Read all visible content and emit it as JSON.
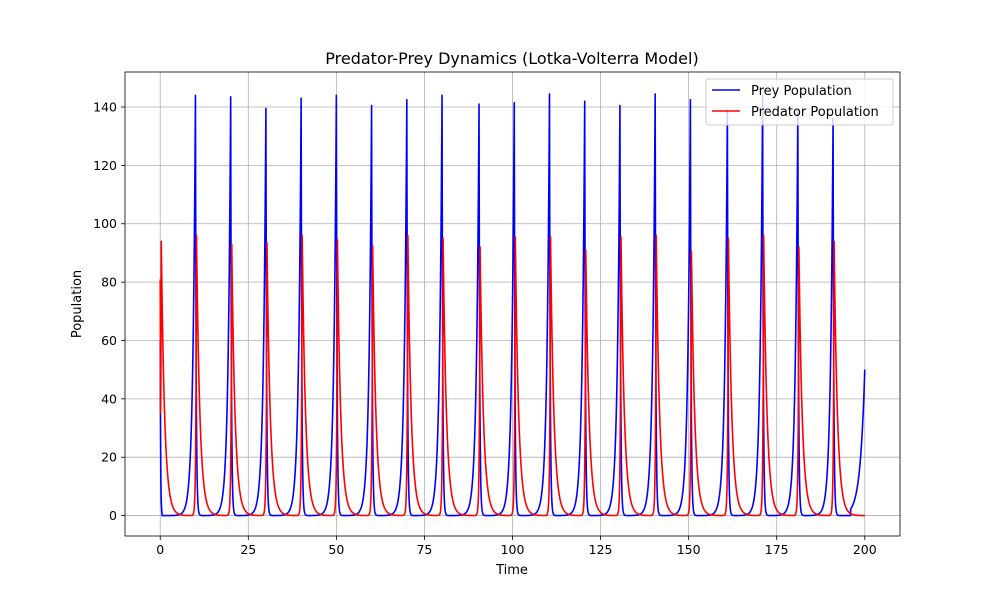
{
  "chart_data": {
    "type": "line",
    "title": "Predator-Prey Dynamics (Lotka-Volterra Model)",
    "xlabel": "Time",
    "ylabel": "Population",
    "xlim": [
      -10,
      210
    ],
    "ylim": [
      -7,
      152
    ],
    "xticks": [
      0,
      25,
      50,
      75,
      100,
      125,
      150,
      175,
      200
    ],
    "yticks": [
      0,
      20,
      40,
      60,
      80,
      100,
      120,
      140
    ],
    "grid": true,
    "legend": "top-right",
    "series": [
      {
        "name": "Prey Population",
        "color": "#0000ff",
        "start": 60,
        "end": 50,
        "peak_times": [
          10,
          20,
          30,
          40,
          50,
          60,
          70,
          80,
          90.5,
          100.5,
          110.5,
          120.5,
          130.5,
          140.5,
          150.5,
          161,
          171,
          181,
          191
        ],
        "peak_values": [
          144,
          143.5,
          139.5,
          143,
          144,
          140.5,
          142.5,
          144,
          141,
          141.5,
          144.5,
          142,
          140.5,
          144.5,
          142.5,
          139,
          144,
          139,
          136
        ]
      },
      {
        "name": "Predator Population",
        "color": "#ff0000",
        "start": 81,
        "end": 0,
        "peak_times": [
          0.3,
          10.3,
          20.3,
          30.3,
          40.3,
          50.3,
          60.3,
          70.3,
          80.3,
          90.8,
          100.8,
          110.8,
          120.8,
          130.8,
          140.8,
          150.8,
          161.3,
          171.3,
          181.3,
          191.3
        ],
        "peak_values": [
          94,
          96,
          93,
          93.5,
          96,
          94.5,
          92.5,
          96,
          95,
          92,
          95.5,
          95.5,
          91,
          95.5,
          96,
          90.5,
          95,
          96,
          92,
          94
        ]
      }
    ]
  }
}
